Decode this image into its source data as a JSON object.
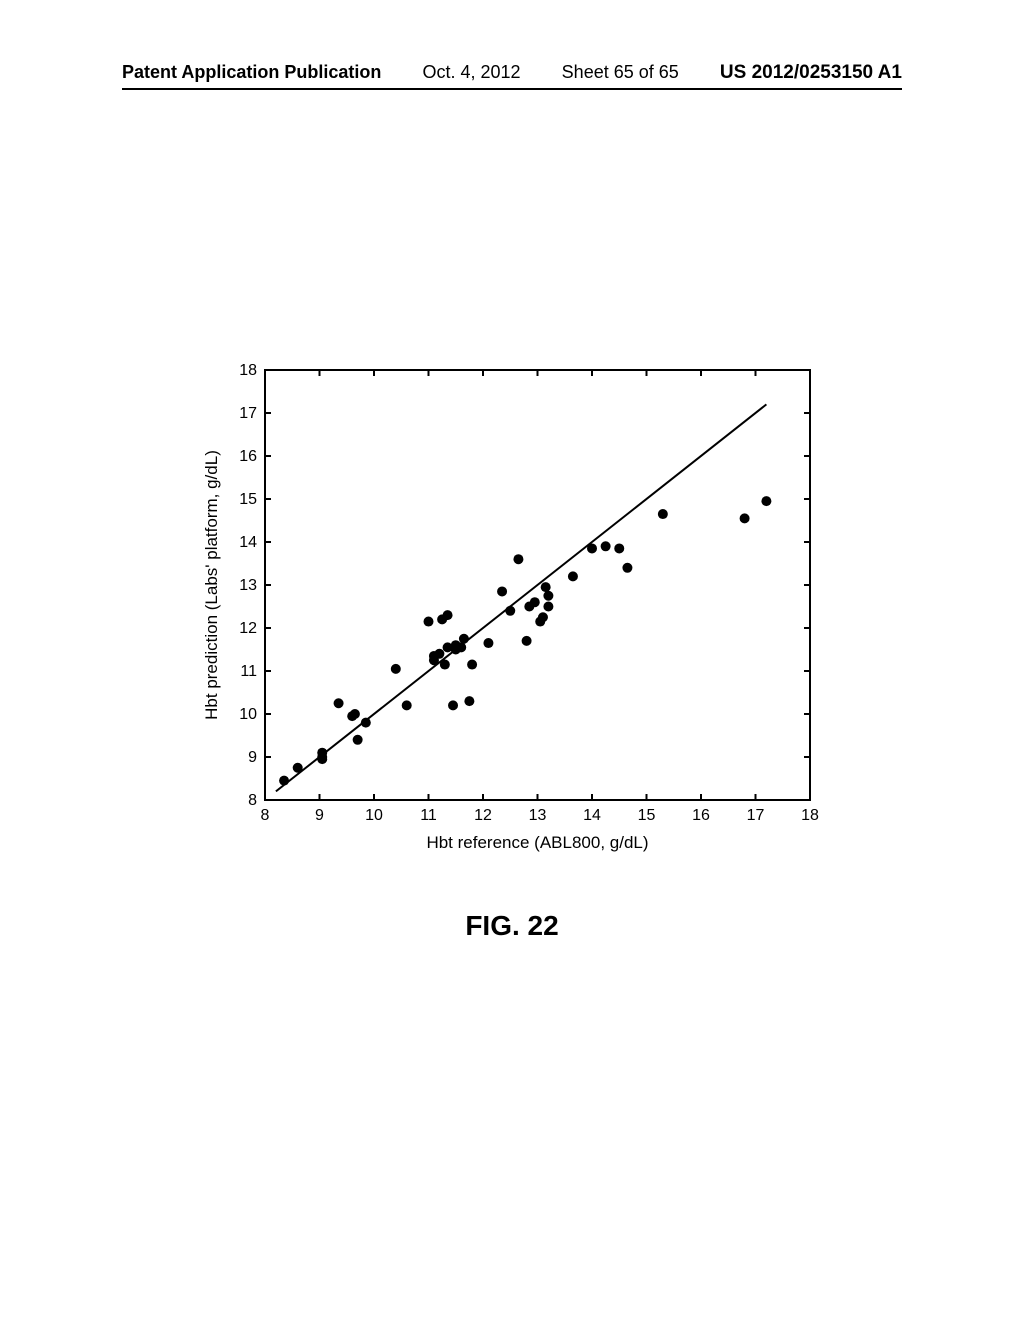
{
  "header": {
    "pub_label": "Patent Application Publication",
    "pub_date": "Oct. 4, 2012",
    "sheet_info": "Sheet 65 of 65",
    "pub_number": "US 2012/0253150 A1"
  },
  "figure_label": "FIG. 22",
  "chart": {
    "type": "scatter",
    "xlabel": "Hbt reference (ABL800, g/dL)",
    "ylabel": "Hbt prediction (Labs' platform, g/dL)",
    "xlim": [
      8,
      18
    ],
    "ylim": [
      8,
      18
    ],
    "xtick_step": 1,
    "ytick_step": 1,
    "background_color": "#ffffff",
    "axis_color": "#000000",
    "tick_length": 6,
    "axis_width": 2,
    "label_fontsize": 17,
    "tick_fontsize": 16,
    "marker_color": "#000000",
    "marker_radius": 5,
    "line_color": "#000000",
    "line_width": 2,
    "identity_line": {
      "x1": 8.2,
      "y1": 8.2,
      "x2": 17.2,
      "y2": 17.2
    },
    "points": [
      [
        8.35,
        8.45
      ],
      [
        8.6,
        8.75
      ],
      [
        9.05,
        8.95
      ],
      [
        9.05,
        9.0
      ],
      [
        9.05,
        9.1
      ],
      [
        9.35,
        10.25
      ],
      [
        9.6,
        9.95
      ],
      [
        9.65,
        10.0
      ],
      [
        9.7,
        9.4
      ],
      [
        9.85,
        9.8
      ],
      [
        10.4,
        11.05
      ],
      [
        10.6,
        10.2
      ],
      [
        11.0,
        12.15
      ],
      [
        11.1,
        11.25
      ],
      [
        11.1,
        11.35
      ],
      [
        11.2,
        11.4
      ],
      [
        11.25,
        12.2
      ],
      [
        11.3,
        11.15
      ],
      [
        11.35,
        11.55
      ],
      [
        11.35,
        12.3
      ],
      [
        11.45,
        10.2
      ],
      [
        11.5,
        11.5
      ],
      [
        11.5,
        11.6
      ],
      [
        11.6,
        11.55
      ],
      [
        11.65,
        11.75
      ],
      [
        11.75,
        10.3
      ],
      [
        11.8,
        11.15
      ],
      [
        12.1,
        11.65
      ],
      [
        12.35,
        12.85
      ],
      [
        12.5,
        12.4
      ],
      [
        12.65,
        13.6
      ],
      [
        12.8,
        11.7
      ],
      [
        12.85,
        12.5
      ],
      [
        12.95,
        12.6
      ],
      [
        13.05,
        12.15
      ],
      [
        13.1,
        12.25
      ],
      [
        13.15,
        12.95
      ],
      [
        13.2,
        12.75
      ],
      [
        13.2,
        12.5
      ],
      [
        13.65,
        13.2
      ],
      [
        14.0,
        13.85
      ],
      [
        14.25,
        13.9
      ],
      [
        14.5,
        13.85
      ],
      [
        14.65,
        13.4
      ],
      [
        15.3,
        14.65
      ],
      [
        16.8,
        14.55
      ],
      [
        17.2,
        14.95
      ]
    ]
  }
}
